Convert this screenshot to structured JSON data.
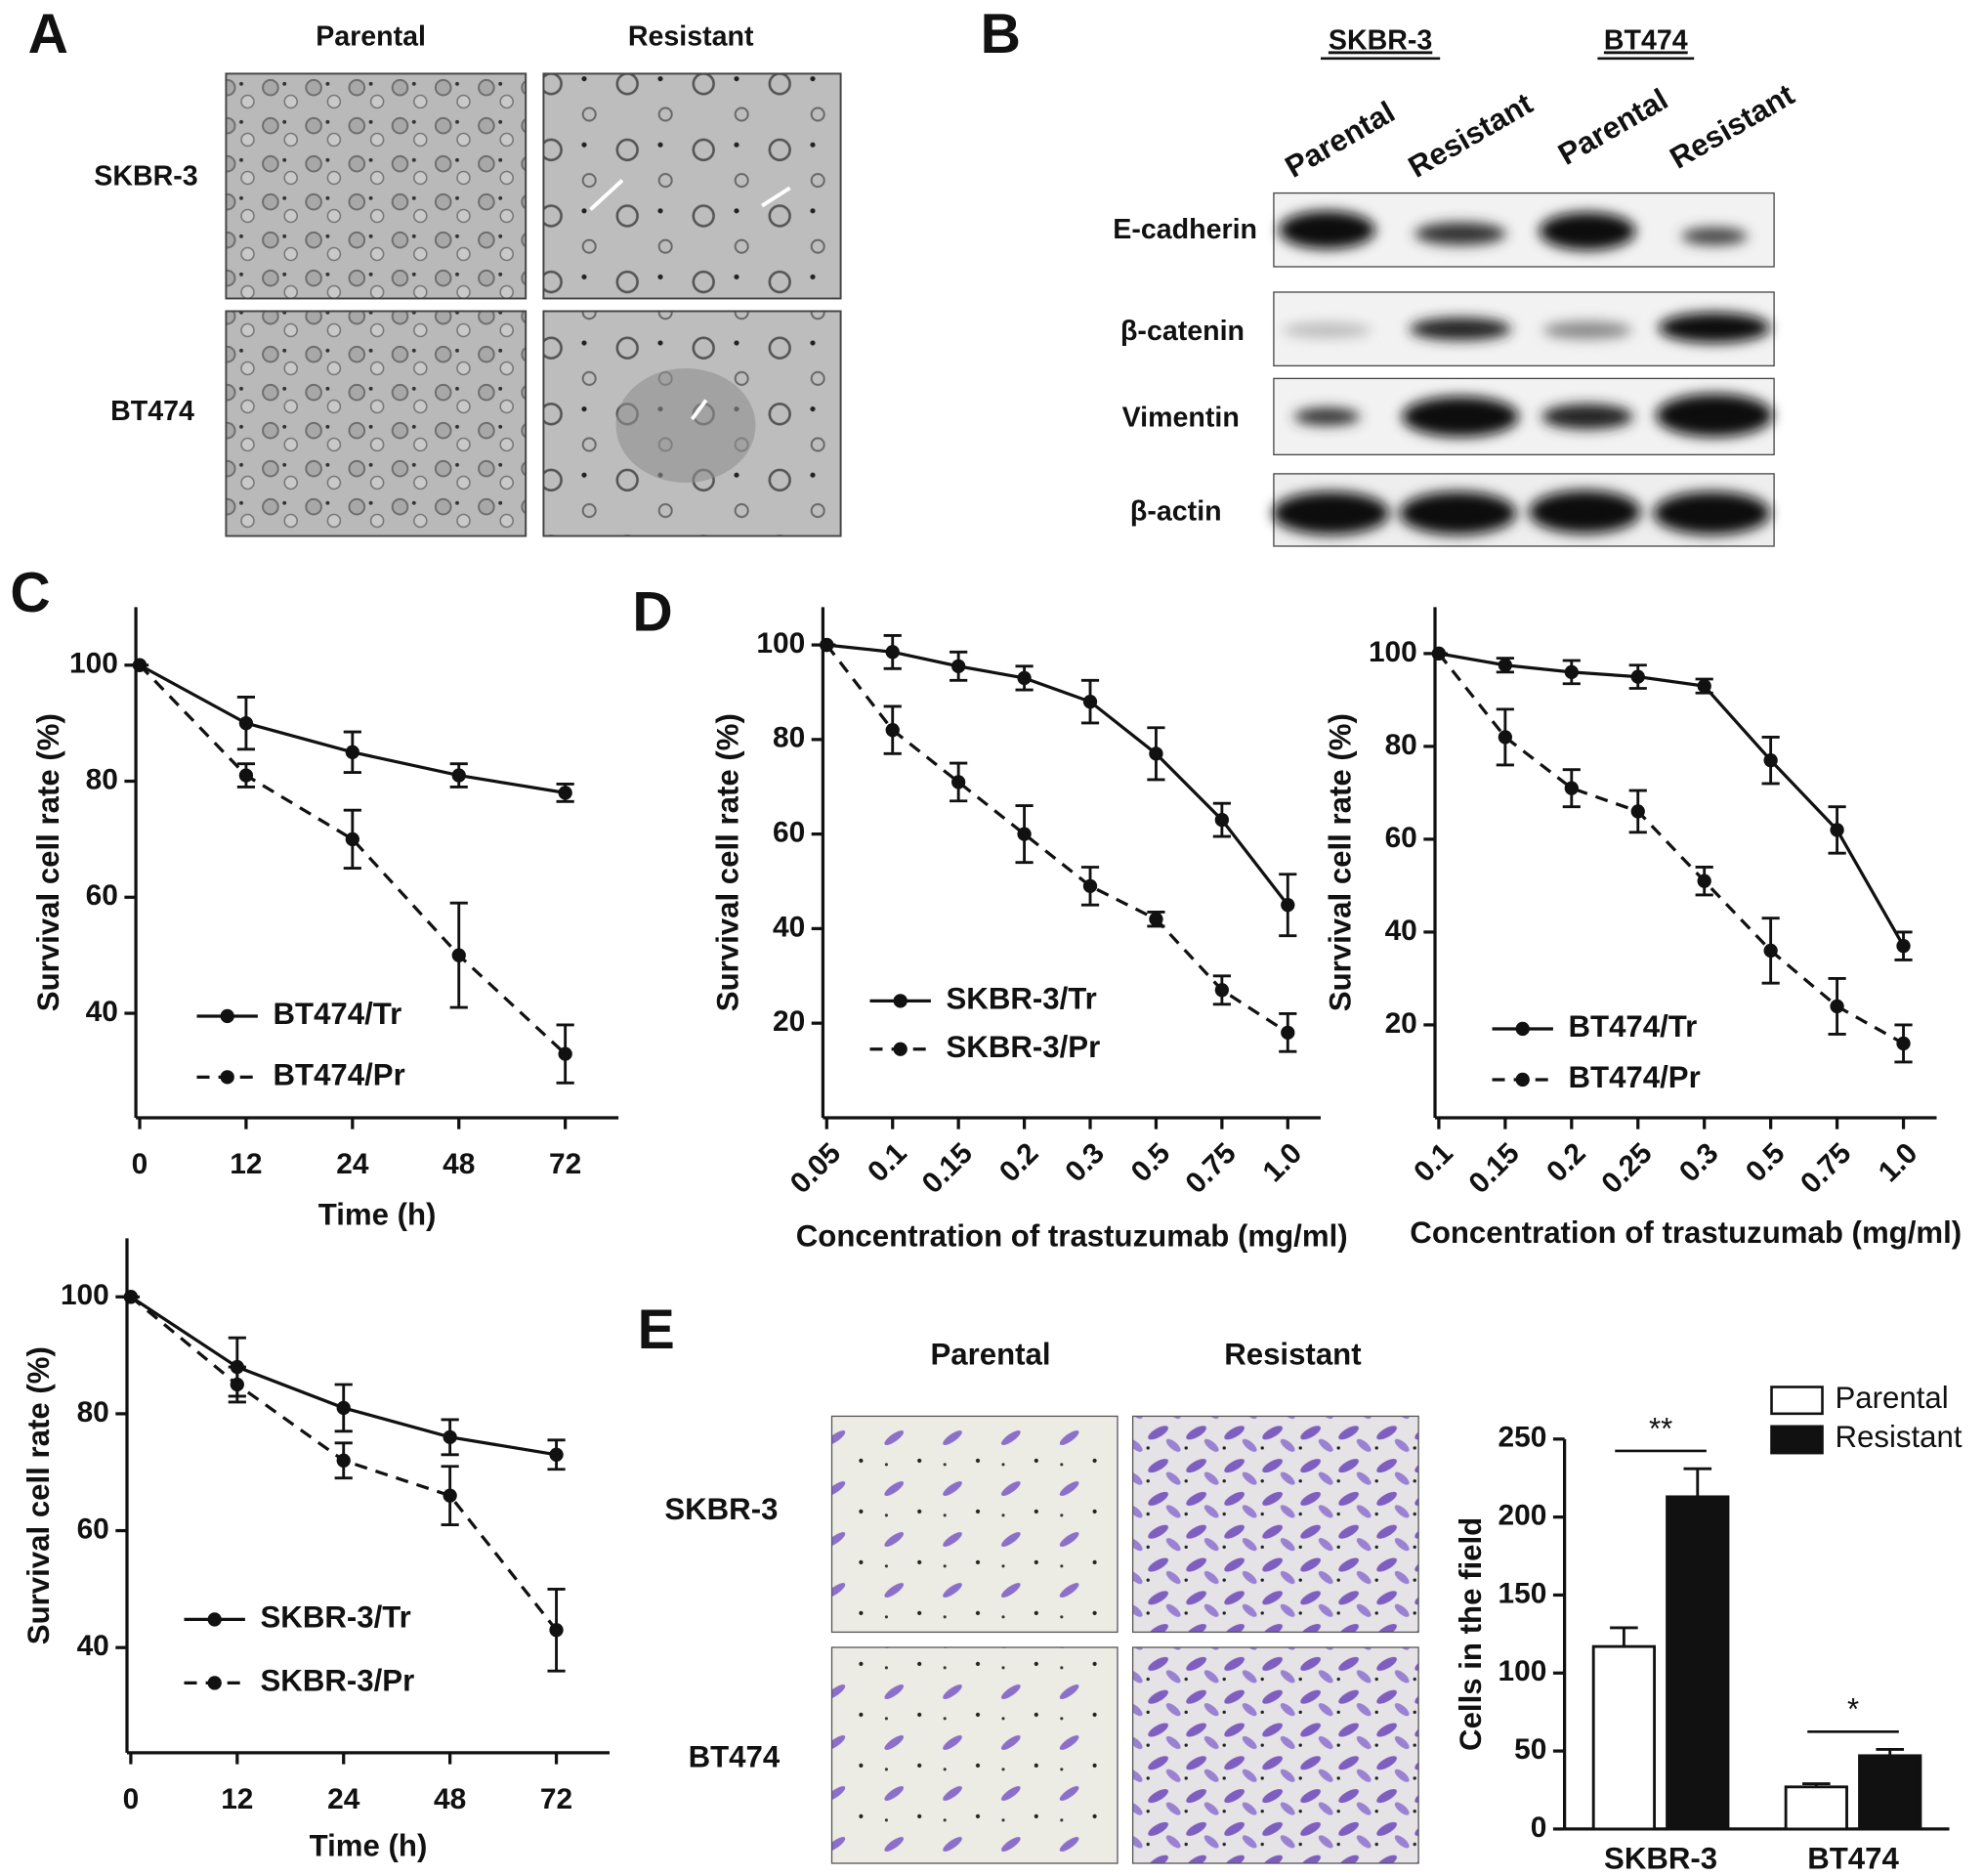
{
  "panels": {
    "a": {
      "letter": "A",
      "columns": [
        "Parental",
        "Resistant"
      ],
      "rows": [
        "SKBR-3",
        "BT474"
      ]
    },
    "b": {
      "letter": "B",
      "groups": [
        "SKBR-3",
        "BT474"
      ],
      "lanes": [
        "Parental",
        "Resistant",
        "Parental",
        "Resistant"
      ],
      "proteins": [
        "E-cadherin",
        "β-catenin",
        "Vimentin",
        "β-actin"
      ]
    },
    "c": {
      "letter": "C"
    },
    "d": {
      "letter": "D"
    },
    "e": {
      "letter": "E",
      "columns": [
        "Parental",
        "Resistant"
      ],
      "rows": [
        "SKBR-3",
        "BT474"
      ]
    }
  },
  "chart_data": [
    {
      "type": "line",
      "x_label": "Time (h)",
      "y_label": "Survival cell rate (%)",
      "categories": [
        "0",
        "12",
        "24",
        "48",
        "72"
      ],
      "series": [
        {
          "name": "BT474/Tr",
          "color": "#111111",
          "style": "solid",
          "values": [
            100,
            90,
            85,
            81,
            78
          ],
          "errors": [
            0,
            4.5,
            3.5,
            2,
            1.5
          ]
        },
        {
          "name": "BT474/Pr",
          "color": "#111111",
          "style": "dashed",
          "values": [
            100,
            81,
            70,
            50,
            33
          ],
          "errors": [
            0,
            2,
            5,
            9,
            5
          ]
        }
      ],
      "ylim": [
        22,
        110
      ],
      "yticks": [
        40,
        60,
        80,
        100
      ],
      "legend": "lower left"
    },
    {
      "type": "line",
      "x_label": "Time (h)",
      "y_label": "Survival cell rate (%)",
      "categories": [
        "0",
        "12",
        "24",
        "48",
        "72"
      ],
      "series": [
        {
          "name": "SKBR-3/Tr",
          "color": "#111111",
          "style": "solid",
          "values": [
            100,
            88,
            81,
            76,
            73
          ],
          "errors": [
            0,
            5,
            4,
            3,
            2.5
          ]
        },
        {
          "name": "SKBR-3/Pr",
          "color": "#111111",
          "style": "dashed",
          "values": [
            100,
            85,
            72,
            66,
            43
          ],
          "errors": [
            0,
            3,
            3,
            5,
            7
          ]
        }
      ],
      "ylim": [
        22,
        110
      ],
      "yticks": [
        40,
        60,
        80,
        100
      ],
      "legend": "lower left"
    },
    {
      "type": "line",
      "x_label": "Concentration of trastuzumab (mg/ml)",
      "y_label": "Survival cell rate (%)",
      "categories": [
        "0.05",
        "0.1",
        "0.15",
        "0.2",
        "0.3",
        "0.5",
        "0.75",
        "1.0"
      ],
      "xtick_rotation": 45,
      "series": [
        {
          "name": "SKBR-3/Tr",
          "color": "#111111",
          "style": "solid",
          "values": [
            100,
            98.5,
            95.5,
            93,
            88,
            77,
            63,
            45
          ],
          "errors": [
            0,
            3.5,
            3,
            2.5,
            4.5,
            5.5,
            3.5,
            6.5
          ]
        },
        {
          "name": "SKBR-3/Pr",
          "color": "#111111",
          "style": "dashed",
          "values": [
            100,
            82,
            71,
            60,
            49,
            42,
            27,
            18
          ],
          "errors": [
            0,
            5,
            4,
            6,
            4,
            1.5,
            3,
            4
          ]
        }
      ],
      "ylim": [
        0,
        108
      ],
      "yticks": [
        20,
        40,
        60,
        80,
        100
      ],
      "legend": "lower left"
    },
    {
      "type": "line",
      "x_label": "Concentration of trastuzumab (mg/ml)",
      "y_label": "Survival cell rate (%)",
      "categories": [
        "0.1",
        "0.15",
        "0.2",
        "0.25",
        "0.3",
        "0.5",
        "0.75",
        "1.0"
      ],
      "xtick_rotation": 45,
      "series": [
        {
          "name": "BT474/Tr",
          "color": "#111111",
          "style": "solid",
          "values": [
            100,
            97.5,
            96,
            95,
            93,
            77,
            62,
            37
          ],
          "errors": [
            0,
            1.5,
            2.5,
            2.5,
            1.5,
            5,
            5,
            3
          ]
        },
        {
          "name": "BT474/Pr",
          "color": "#111111",
          "style": "dashed",
          "values": [
            100,
            82,
            71,
            66,
            51,
            36,
            24,
            16
          ],
          "errors": [
            0,
            6,
            4,
            4.5,
            3,
            7,
            6,
            4
          ]
        }
      ],
      "ylim": [
        0,
        110
      ],
      "yticks": [
        20,
        40,
        60,
        80,
        100
      ],
      "legend": "lower left"
    },
    {
      "type": "bar",
      "y_label": "Cells in the field",
      "categories": [
        "SKBR-3",
        "BT474"
      ],
      "series": [
        {
          "name": "Parental",
          "color": "#ffffff",
          "values": [
            117,
            27
          ],
          "errors": [
            12,
            2
          ]
        },
        {
          "name": "Resistant",
          "color": "#111111",
          "values": [
            213,
            47
          ],
          "errors": [
            18,
            4
          ]
        }
      ],
      "annotations": [
        "**",
        "*"
      ],
      "ylim": [
        0,
        250
      ],
      "yticks": [
        0,
        50,
        100,
        150,
        200,
        250
      ],
      "legend": "upper right"
    }
  ]
}
